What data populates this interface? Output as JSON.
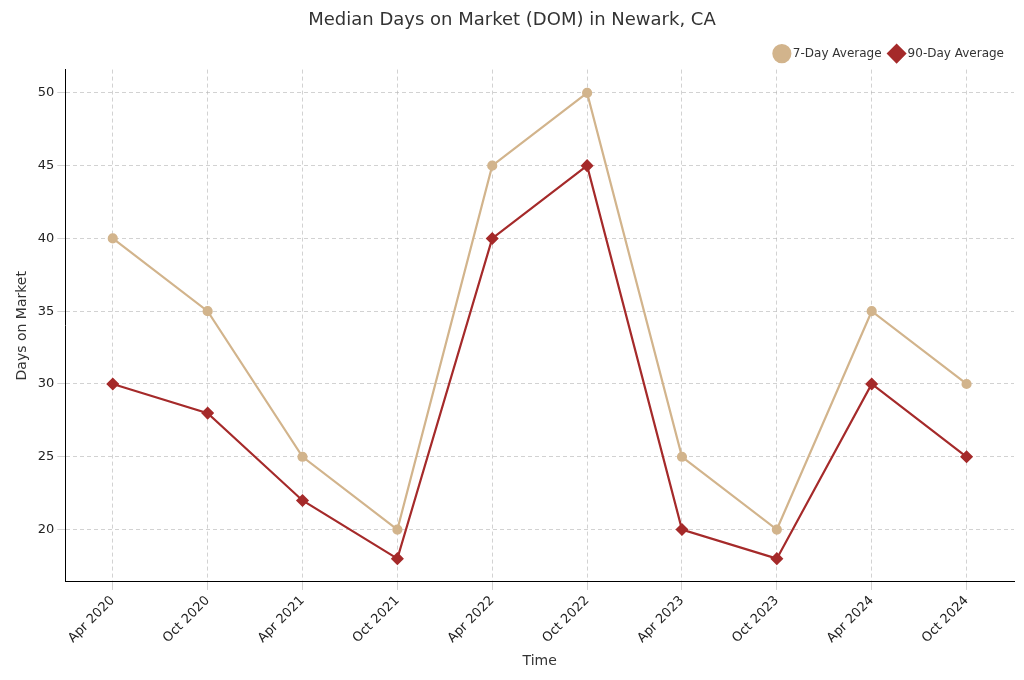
{
  "chart_data": {
    "type": "line",
    "title": "Median Days on Market (DOM) in Newark, CA",
    "x_label": "Time",
    "y_label": "Days on Market",
    "categories": [
      "Apr 2020",
      "Oct 2020",
      "Apr 2021",
      "Oct 2021",
      "Apr 2022",
      "Oct 2022",
      "Apr 2023",
      "Oct 2023",
      "Apr 2024",
      "Oct 2024"
    ],
    "series": [
      {
        "name": "7-Day Average",
        "color": "#d2b48c",
        "marker": "circle",
        "line_style": "solid",
        "values": [
          40,
          35,
          25,
          20,
          45,
          50,
          25,
          20,
          35,
          30
        ]
      },
      {
        "name": "90-Day Average",
        "color": "#a52a2a",
        "marker": "diamond",
        "line_style": "solid",
        "values": [
          30,
          28,
          22,
          18,
          40,
          45,
          20,
          18,
          30,
          25
        ]
      }
    ],
    "ylim": [
      16.4,
      51.6
    ],
    "yticks": [
      20,
      25,
      30,
      35,
      40,
      45,
      50
    ],
    "grid": true,
    "legend": "upper right"
  }
}
